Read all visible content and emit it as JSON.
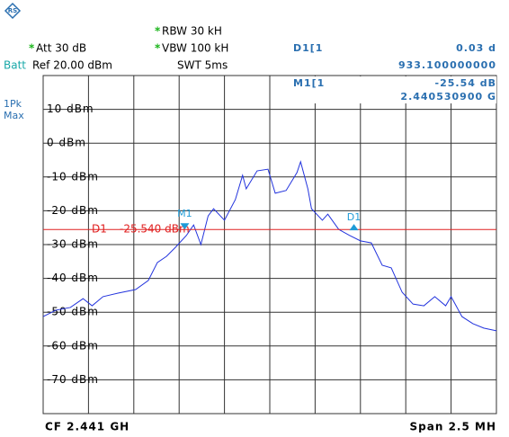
{
  "header": {
    "batt": "Batt",
    "att": "Att 30 dB",
    "ref": "Ref 20.00 dBm",
    "rbw": "RBW 30 kH",
    "vbw": "VBW 100 kH",
    "swt": "SWT 5ms",
    "delta_name": "D1[1",
    "delta_level": "0.03 d",
    "delta_freq": "933.100000000",
    "marker_name": "M1[1",
    "marker_level": "-25.54 dB",
    "marker_freq": "2.440530900 G",
    "trace_mode": "1Pk",
    "trace_detector": "Max",
    "center": "CF 2.441 GH",
    "span": "Span 2.5 MH"
  },
  "chart_data": {
    "type": "line",
    "color": "#2233dd",
    "xlim": [
      2.43975,
      2.44225
    ],
    "ylim": [
      -80,
      20
    ],
    "yticks": [
      {
        "value": 10,
        "label": "10 dBm"
      },
      {
        "value": 0,
        "label": "0 dBm"
      },
      {
        "value": -10,
        "label": "-10 dBm"
      },
      {
        "value": -20,
        "label": "-20 dBm"
      },
      {
        "value": -30,
        "label": "-30 dBm"
      },
      {
        "value": -40,
        "label": "-40 dBm"
      },
      {
        "value": -50,
        "label": "-50 dBm"
      },
      {
        "value": -60,
        "label": "-60 dBm"
      },
      {
        "value": -70,
        "label": "-70 dBm"
      }
    ],
    "grid": true,
    "x": [
      2.43975,
      2.43982,
      2.4399,
      2.43997,
      2.44002,
      2.44008,
      2.44016,
      2.44026,
      2.44033,
      2.44038,
      2.44043,
      2.44048,
      2.44054,
      2.44058,
      2.44062,
      2.44066,
      2.44069,
      2.44075,
      2.44081,
      2.44085,
      2.44087,
      2.44093,
      2.44099,
      2.44103,
      2.44109,
      2.44115,
      2.44117,
      2.44121,
      2.44123,
      2.44129,
      2.44132,
      2.44138,
      2.44144,
      2.4415,
      2.44156,
      2.44162,
      2.44167,
      2.44173,
      2.44179,
      2.44185,
      2.44191,
      2.44197,
      2.442,
      2.44206,
      2.44212,
      2.44218,
      2.44225
    ],
    "values": [
      -51.3,
      -49.4,
      -48.6,
      -46.0,
      -48.1,
      -45.4,
      -44.4,
      -43.3,
      -40.6,
      -35.3,
      -33.5,
      -30.8,
      -27.3,
      -24.2,
      -30.0,
      -21.5,
      -19.4,
      -22.8,
      -16.7,
      -9.5,
      -13.5,
      -8.2,
      -7.7,
      -14.8,
      -14.0,
      -8.7,
      -5.5,
      -13.5,
      -19.4,
      -22.8,
      -21.0,
      -25.5,
      -27.3,
      -28.9,
      -29.5,
      -36.1,
      -36.9,
      -44.1,
      -47.6,
      -48.1,
      -45.4,
      -48.1,
      -45.4,
      -51.3,
      -53.4,
      -54.7,
      -55.5
    ],
    "display_line": {
      "name": "D1",
      "value": -25.54,
      "value_label": "-25.540 dBm",
      "color": "#e02020"
    },
    "markers": [
      {
        "name": "M1",
        "x": 2.4405309,
        "y": -25.54
      },
      {
        "name": "D1",
        "x": 2.441464,
        "y": -25.51
      }
    ],
    "marker_color": "#1e9bd7"
  }
}
